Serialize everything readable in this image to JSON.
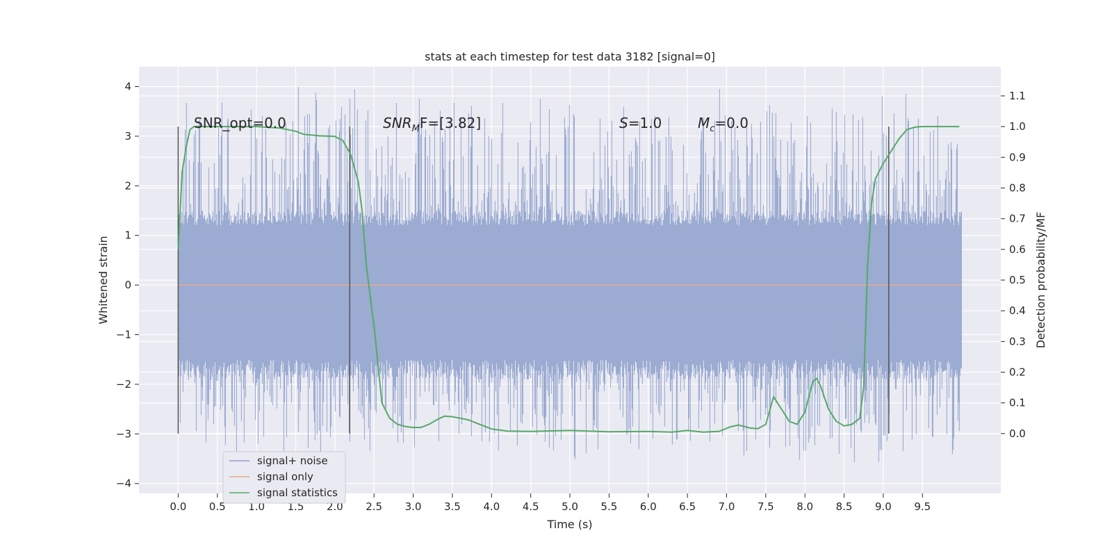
{
  "chart_data": {
    "type": "line",
    "title": "stats at each timestep for test data 3182 [signal=0]",
    "xlabel": "Time (s)",
    "ylabel": "Whitened strain",
    "ylabel_right": "Detection probability/MF",
    "xlim": [
      -0.5,
      10.5
    ],
    "ylim": [
      -4.2,
      4.4
    ],
    "ylim_right": [
      -0.195,
      1.195
    ],
    "x_ticks": [
      "0.0",
      "0.5",
      "1.0",
      "1.5",
      "2.0",
      "2.5",
      "3.0",
      "3.5",
      "4.0",
      "4.5",
      "5.0",
      "5.5",
      "6.0",
      "6.5",
      "7.0",
      "7.5",
      "8.0",
      "8.5",
      "9.0",
      "9.5"
    ],
    "y_ticks": [
      "−4",
      "−3",
      "−2",
      "−1",
      "0",
      "1",
      "2",
      "3",
      "4"
    ],
    "y_ticks_right": [
      "0.0",
      "0.1",
      "0.2",
      "0.3",
      "0.4",
      "0.5",
      "0.6",
      "0.7",
      "0.8",
      "0.9",
      "1.0",
      "1.1"
    ],
    "grid": true,
    "legend_position": "lower-left",
    "annotations": {
      "snr_opt": "SNR_opt=0.0",
      "snr_mf_main": "SNR",
      "snr_mf_sub": "M",
      "snr_mf_rest": "F=[3.82]",
      "s_var": "S",
      "s_rest": "=1.0",
      "mc_var": "M",
      "mc_sub": "c",
      "mc_rest": "=0.0"
    },
    "vertical_lines_x": [
      0.0,
      2.19,
      9.07
    ],
    "series": [
      {
        "name": "signal+ noise",
        "color": "#8da0cb",
        "axis": "left",
        "x_range": [
          0.0,
          10.0
        ],
        "typical_range": [
          -1.7,
          1.35
        ],
        "envelope_range": [
          -3.6,
          4.05
        ]
      },
      {
        "name": "signal only",
        "color": "#e8a98e",
        "axis": "left",
        "x": [
          0.0,
          10.0
        ],
        "y": [
          0.0,
          0.0
        ]
      },
      {
        "name": "signal statistics",
        "color": "#55a868",
        "axis": "right",
        "x": [
          0.0,
          0.05,
          0.1,
          0.15,
          0.2,
          0.3,
          0.5,
          1.0,
          1.3,
          1.5,
          1.6,
          1.8,
          2.0,
          2.1,
          2.2,
          2.3,
          2.35,
          2.4,
          2.5,
          2.6,
          2.7,
          2.8,
          2.9,
          3.0,
          3.1,
          3.2,
          3.3,
          3.4,
          3.5,
          3.6,
          3.7,
          3.8,
          3.9,
          4.0,
          4.2,
          4.5,
          5.0,
          5.5,
          6.0,
          6.3,
          6.5,
          6.7,
          6.9,
          7.05,
          7.15,
          7.3,
          7.4,
          7.5,
          7.6,
          7.7,
          7.8,
          7.9,
          8.0,
          8.1,
          8.15,
          8.2,
          8.3,
          8.4,
          8.5,
          8.6,
          8.7,
          8.75,
          8.8,
          8.85,
          8.9,
          9.0,
          9.1,
          9.2,
          9.3,
          9.4,
          9.5,
          9.7,
          9.97
        ],
        "y": [
          0.6,
          0.85,
          0.93,
          0.99,
          1.0,
          1.0,
          1.0,
          1.0,
          0.995,
          0.985,
          0.975,
          0.97,
          0.968,
          0.955,
          0.91,
          0.82,
          0.72,
          0.55,
          0.35,
          0.1,
          0.05,
          0.03,
          0.023,
          0.02,
          0.02,
          0.03,
          0.045,
          0.057,
          0.055,
          0.05,
          0.045,
          0.035,
          0.025,
          0.015,
          0.008,
          0.007,
          0.01,
          0.006,
          0.007,
          0.005,
          0.01,
          0.005,
          0.007,
          0.022,
          0.028,
          0.018,
          0.016,
          0.03,
          0.12,
          0.08,
          0.04,
          0.03,
          0.07,
          0.17,
          0.18,
          0.155,
          0.08,
          0.04,
          0.025,
          0.03,
          0.05,
          0.15,
          0.55,
          0.75,
          0.83,
          0.88,
          0.92,
          0.96,
          0.99,
          0.998,
          1.0,
          1.0,
          1.0
        ]
      }
    ]
  }
}
